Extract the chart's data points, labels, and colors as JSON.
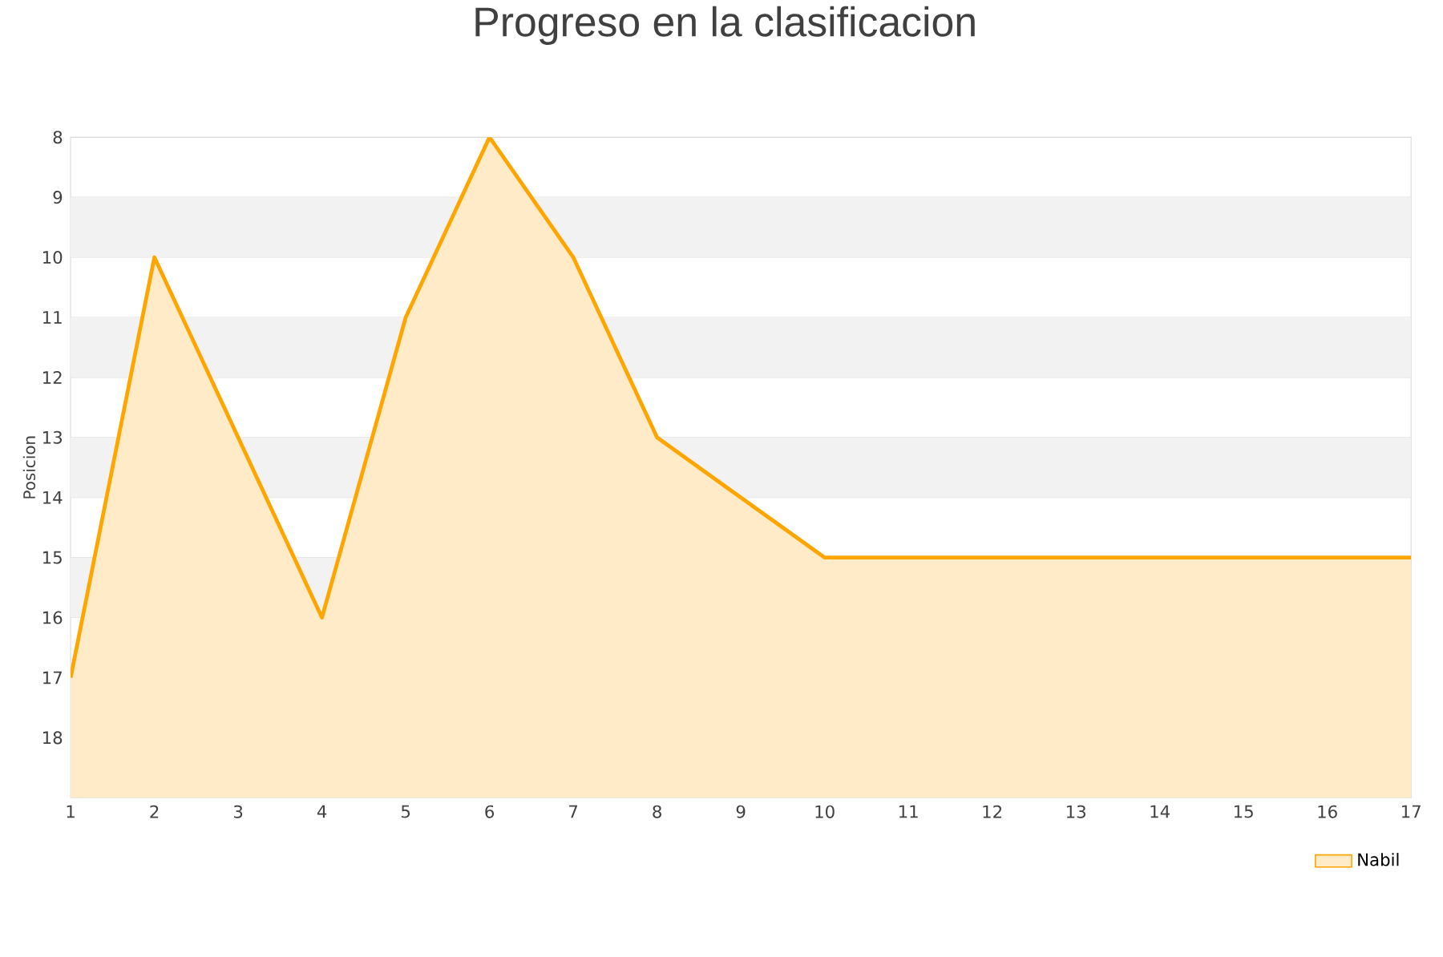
{
  "chart_data": {
    "type": "area",
    "title": "Progreso en la clasificacion",
    "ylabel": "Posicion",
    "x": [
      1,
      2,
      3,
      4,
      5,
      6,
      7,
      8,
      9,
      10,
      11,
      12,
      13,
      14,
      15,
      16,
      17
    ],
    "series": [
      {
        "name": "Nabil",
        "color": "#ffa500",
        "values": [
          17,
          10,
          13,
          16,
          11,
          8,
          10,
          13,
          14,
          15,
          15,
          15,
          15,
          15,
          15,
          15,
          15
        ]
      }
    ],
    "xlim": [
      1,
      17
    ],
    "xticks": [
      1,
      2,
      3,
      4,
      5,
      6,
      7,
      8,
      9,
      10,
      11,
      12,
      13,
      14,
      15,
      16,
      17
    ],
    "ylim": [
      19,
      8
    ],
    "yticks": [
      8,
      9,
      10,
      11,
      12,
      13,
      14,
      15,
      16,
      17,
      18
    ],
    "grid": "y",
    "legend": "bottom right"
  }
}
